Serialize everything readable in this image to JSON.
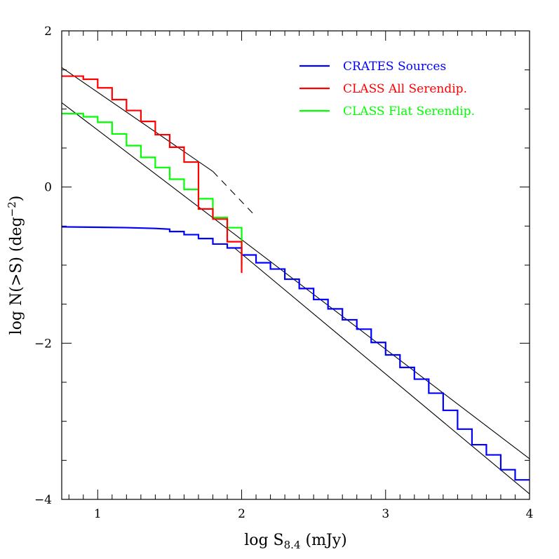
{
  "chart_data": {
    "type": "line",
    "xlabel": "log S",
    "xlabel_subscript": "8.4",
    "xlabel_unit": " (mJy)",
    "ylabel": "log N(>S) (deg",
    "ylabel_superscript": "−2",
    "ylabel_close": ")",
    "xlim": [
      0.75,
      4.0
    ],
    "ylim": [
      -4,
      2
    ],
    "x_major_ticks": [
      1,
      2,
      3,
      4
    ],
    "x_tick_labels": [
      "1",
      "2",
      "3",
      "4"
    ],
    "x_minor_step": 0.1,
    "y_major_ticks": [
      -4,
      -2,
      0,
      2
    ],
    "y_tick_labels": [
      "−4",
      "−2",
      "0",
      "2"
    ],
    "y_minor_step": 0.5,
    "grid": false,
    "legend_position": "top-right",
    "series": [
      {
        "name": "CRATES Sources",
        "color": "#0000ff",
        "style": "smooth-then-step",
        "curve_x": [
          0.75,
          1.0,
          1.2,
          1.4,
          1.5
        ],
        "curve_y": [
          -0.51,
          -0.515,
          -0.52,
          -0.53,
          -0.54
        ],
        "step_x": [
          1.5,
          1.6,
          1.7,
          1.8,
          1.9,
          2.0,
          2.1,
          2.2,
          2.3,
          2.4,
          2.5,
          2.6,
          2.7,
          2.8,
          2.9,
          3.0,
          3.1,
          3.2,
          3.3,
          3.4,
          3.5,
          3.6,
          3.7,
          3.8,
          3.9,
          4.0
        ],
        "step_y": [
          -0.57,
          -0.61,
          -0.66,
          -0.73,
          -0.78,
          -0.87,
          -0.97,
          -1.05,
          -1.18,
          -1.3,
          -1.44,
          -1.56,
          -1.7,
          -1.82,
          -1.99,
          -2.15,
          -2.31,
          -2.46,
          -2.64,
          -2.86,
          -3.1,
          -3.3,
          -3.43,
          -3.62,
          -3.75
        ]
      },
      {
        "name": "CLASS All Serendip.",
        "color": "#ff0000",
        "style": "step",
        "step_x": [
          0.75,
          0.9,
          1.0,
          1.1,
          1.2,
          1.3,
          1.4,
          1.5,
          1.6,
          1.7,
          1.8,
          1.9,
          2.0
        ],
        "step_y": [
          1.42,
          1.38,
          1.27,
          1.12,
          0.98,
          0.84,
          0.67,
          0.51,
          0.32,
          -0.28,
          -0.41,
          -0.7,
          -1.1
        ]
      },
      {
        "name": "CLASS Flat Serendip.",
        "color": "#00ff00",
        "style": "step",
        "step_x": [
          0.75,
          0.9,
          1.0,
          1.1,
          1.2,
          1.3,
          1.4,
          1.5,
          1.6,
          1.7,
          1.8,
          1.9,
          2.0
        ],
        "step_y": [
          0.94,
          0.9,
          0.83,
          0.68,
          0.53,
          0.38,
          0.25,
          0.1,
          -0.03,
          -0.15,
          -0.39,
          -0.52,
          -1.0
        ]
      }
    ],
    "fit_lines": [
      {
        "color": "#000000",
        "x": [
          0.75,
          1.8
        ],
        "y": [
          1.53,
          0.2
        ],
        "style": "solid"
      },
      {
        "color": "#000000",
        "x": [
          1.8,
          2.1
        ],
        "y": [
          0.2,
          -0.38
        ],
        "style": "dashed"
      },
      {
        "color": "#000000",
        "x": [
          0.75,
          4.0
        ],
        "y": [
          1.08,
          -3.48
        ],
        "style": "solid"
      },
      {
        "color": "#000000",
        "x": [
          1.95,
          4.0
        ],
        "y": [
          -0.78,
          -3.93
        ],
        "style": "solid"
      }
    ]
  }
}
